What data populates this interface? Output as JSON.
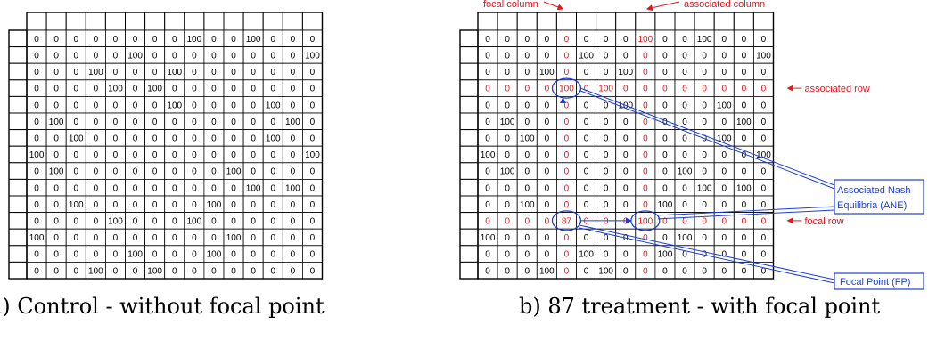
{
  "panel_a": {
    "caption": "a) Control - without focal point",
    "rows": [
      [
        0,
        0,
        0,
        0,
        0,
        0,
        0,
        0,
        100,
        0,
        0,
        100,
        0,
        0,
        0
      ],
      [
        0,
        0,
        0,
        0,
        0,
        100,
        0,
        0,
        0,
        0,
        0,
        0,
        0,
        0,
        100
      ],
      [
        0,
        0,
        0,
        100,
        0,
        0,
        0,
        100,
        0,
        0,
        0,
        0,
        0,
        0,
        0
      ],
      [
        0,
        0,
        0,
        0,
        100,
        0,
        100,
        0,
        0,
        0,
        0,
        0,
        0,
        0,
        0
      ],
      [
        0,
        0,
        0,
        0,
        0,
        0,
        0,
        100,
        0,
        0,
        0,
        0,
        100,
        0,
        0
      ],
      [
        0,
        100,
        0,
        0,
        0,
        0,
        0,
        0,
        0,
        0,
        0,
        0,
        0,
        100,
        0
      ],
      [
        0,
        0,
        100,
        0,
        0,
        0,
        0,
        0,
        0,
        0,
        0,
        0,
        100,
        0,
        0
      ],
      [
        100,
        0,
        0,
        0,
        0,
        0,
        0,
        0,
        0,
        0,
        0,
        0,
        0,
        0,
        100
      ],
      [
        0,
        100,
        0,
        0,
        0,
        0,
        0,
        0,
        0,
        0,
        100,
        0,
        0,
        0,
        0
      ],
      [
        0,
        0,
        0,
        0,
        0,
        0,
        0,
        0,
        0,
        0,
        0,
        100,
        0,
        100,
        0
      ],
      [
        0,
        0,
        100,
        0,
        0,
        0,
        0,
        0,
        0,
        100,
        0,
        0,
        0,
        0,
        0
      ],
      [
        0,
        0,
        0,
        0,
        100,
        0,
        0,
        0,
        100,
        0,
        0,
        0,
        0,
        0,
        0
      ],
      [
        100,
        0,
        0,
        0,
        0,
        0,
        0,
        0,
        0,
        0,
        100,
        0,
        0,
        0,
        0
      ],
      [
        0,
        0,
        0,
        0,
        0,
        100,
        0,
        0,
        0,
        100,
        0,
        0,
        0,
        0,
        0
      ],
      [
        0,
        0,
        0,
        100,
        0,
        0,
        100,
        0,
        0,
        0,
        0,
        0,
        0,
        0,
        0
      ]
    ]
  },
  "panel_b": {
    "caption": "b) 87 treatment - with focal point",
    "rows": [
      [
        0,
        0,
        0,
        0,
        0,
        0,
        0,
        0,
        100,
        0,
        0,
        100,
        0,
        0,
        0
      ],
      [
        0,
        0,
        0,
        0,
        0,
        100,
        0,
        0,
        0,
        0,
        0,
        0,
        0,
        0,
        100
      ],
      [
        0,
        0,
        0,
        100,
        0,
        0,
        0,
        100,
        0,
        0,
        0,
        0,
        0,
        0,
        0
      ],
      [
        0,
        0,
        0,
        0,
        100,
        0,
        100,
        0,
        0,
        0,
        0,
        0,
        0,
        0,
        0
      ],
      [
        0,
        0,
        0,
        0,
        0,
        0,
        0,
        100,
        0,
        0,
        0,
        0,
        100,
        0,
        0
      ],
      [
        0,
        100,
        0,
        0,
        0,
        0,
        0,
        0,
        0,
        0,
        0,
        0,
        0,
        100,
        0
      ],
      [
        0,
        0,
        100,
        0,
        0,
        0,
        0,
        0,
        0,
        0,
        0,
        0,
        100,
        0,
        0
      ],
      [
        100,
        0,
        0,
        0,
        0,
        0,
        0,
        0,
        0,
        0,
        0,
        0,
        0,
        0,
        100
      ],
      [
        0,
        100,
        0,
        0,
        0,
        0,
        0,
        0,
        0,
        0,
        100,
        0,
        0,
        0,
        0
      ],
      [
        0,
        0,
        0,
        0,
        0,
        0,
        0,
        0,
        0,
        0,
        0,
        100,
        0,
        100,
        0
      ],
      [
        0,
        0,
        100,
        0,
        0,
        0,
        0,
        0,
        0,
        100,
        0,
        0,
        0,
        0,
        0
      ],
      [
        0,
        0,
        0,
        0,
        87,
        0,
        0,
        0,
        100,
        0,
        0,
        0,
        0,
        0,
        0
      ],
      [
        100,
        0,
        0,
        0,
        0,
        0,
        0,
        0,
        0,
        0,
        100,
        0,
        0,
        0,
        0
      ],
      [
        0,
        0,
        0,
        0,
        0,
        100,
        0,
        0,
        0,
        100,
        0,
        0,
        0,
        0,
        0
      ],
      [
        0,
        0,
        0,
        100,
        0,
        0,
        100,
        0,
        0,
        0,
        0,
        0,
        0,
        0,
        0
      ]
    ],
    "focal_column_index": 4,
    "associated_column_index": 8,
    "associated_row_index": 3,
    "focal_row_index": 11,
    "labels": {
      "focal_column": "focal column",
      "associated_column": "associated column",
      "associated_row": "associated row",
      "focal_row": "focal row",
      "ane_line1": "Associated Nash",
      "ane_line2": "Equilibria (ANE)",
      "fp": "Focal Point (FP)"
    }
  },
  "colors": {
    "grid": "#000000",
    "highlight": "#e8141c",
    "annotation": "#1f3fd6"
  }
}
